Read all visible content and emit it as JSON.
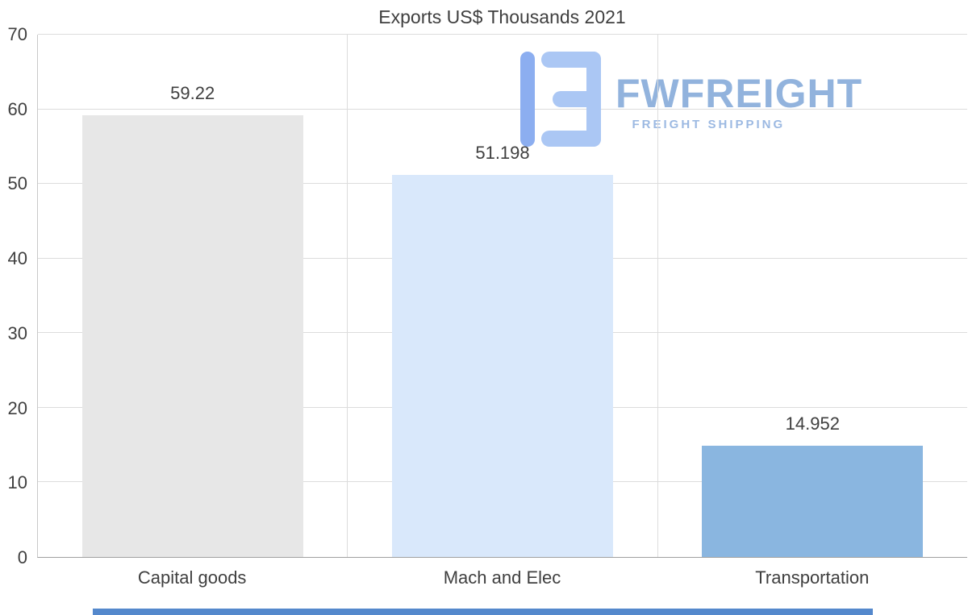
{
  "chart_data": {
    "type": "bar",
    "title": "Exports US$ Thousands 2021",
    "categories": [
      "Capital goods",
      "Mach and Elec",
      "Transportation"
    ],
    "values": [
      59.22,
      51.198,
      14.952
    ],
    "value_labels": [
      "59.22",
      "51.198",
      "14.952"
    ],
    "bar_colors": [
      "#e7e7e7",
      "#d9e8fb",
      "#8ab6e0"
    ],
    "xlabel": "",
    "ylabel": "",
    "ylim": [
      0,
      70
    ],
    "yticks": [
      0,
      10,
      20,
      30,
      40,
      50,
      60,
      70
    ],
    "grid": "horizontal-and-category-dividers",
    "legend": "none"
  },
  "watermark": {
    "brand": "FWFREIGHT",
    "tagline": "FREIGHT SHIPPING",
    "logo_color_primary": "#8caef0",
    "logo_color_secondary": "#abc7f4",
    "text_color": "#92b3dd"
  },
  "colors": {
    "background": "#ffffff",
    "gridline": "#dcdcdc",
    "axis_line": "#a0a0a0",
    "text": "#3f3f3f",
    "scrollbar": "#5488cc"
  }
}
